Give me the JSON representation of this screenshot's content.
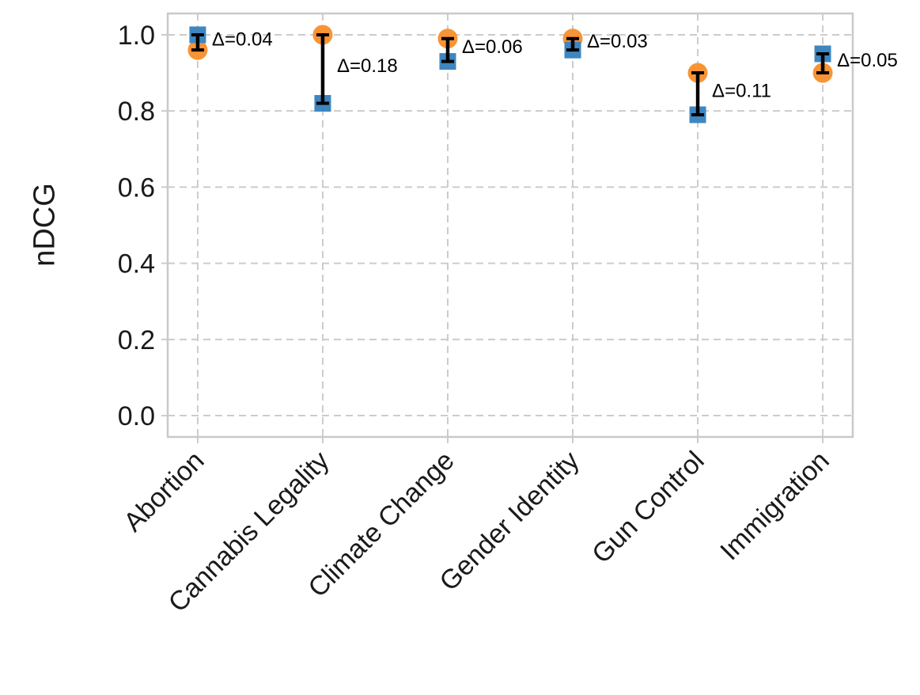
{
  "figure": {
    "background": "#ffffff"
  },
  "chart_data": {
    "type": "scatter",
    "variant": "dumbbell-with-error-bars",
    "title": "",
    "xlabel": "",
    "ylabel": "nDCG",
    "categories": [
      "Abortion",
      "Cannabis Legality",
      "Climate Change",
      "Gender Identity",
      "Gun Control",
      "Immigration"
    ],
    "series": [
      {
        "name": "circle-series",
        "marker": "circle",
        "color": "#F89435",
        "values": [
          0.96,
          1.0,
          0.99,
          0.99,
          0.9,
          0.9
        ]
      },
      {
        "name": "square-series",
        "marker": "square",
        "color": "#3E86C0",
        "values": [
          1.0,
          0.82,
          0.93,
          0.96,
          0.79,
          0.95
        ]
      }
    ],
    "deltas": [
      0.04,
      0.18,
      0.06,
      0.03,
      0.11,
      0.05
    ],
    "annotations": [
      "Δ=0.04",
      "Δ=0.18",
      "Δ=0.06",
      "Δ=0.03",
      "Δ=0.11",
      "Δ=0.05"
    ],
    "y_ticks": [
      "0.0",
      "0.2",
      "0.4",
      "0.6",
      "0.8",
      "1.0"
    ],
    "ylim": [
      -0.056,
      1.056
    ],
    "grid": true,
    "grid_style": "dashed",
    "legend_position": "none",
    "colors": {
      "errorbar": "#000000",
      "grid": "#cccccc",
      "spine": "#c9c9c9",
      "text": "#1a1a1a",
      "annotation": "#000000"
    }
  }
}
